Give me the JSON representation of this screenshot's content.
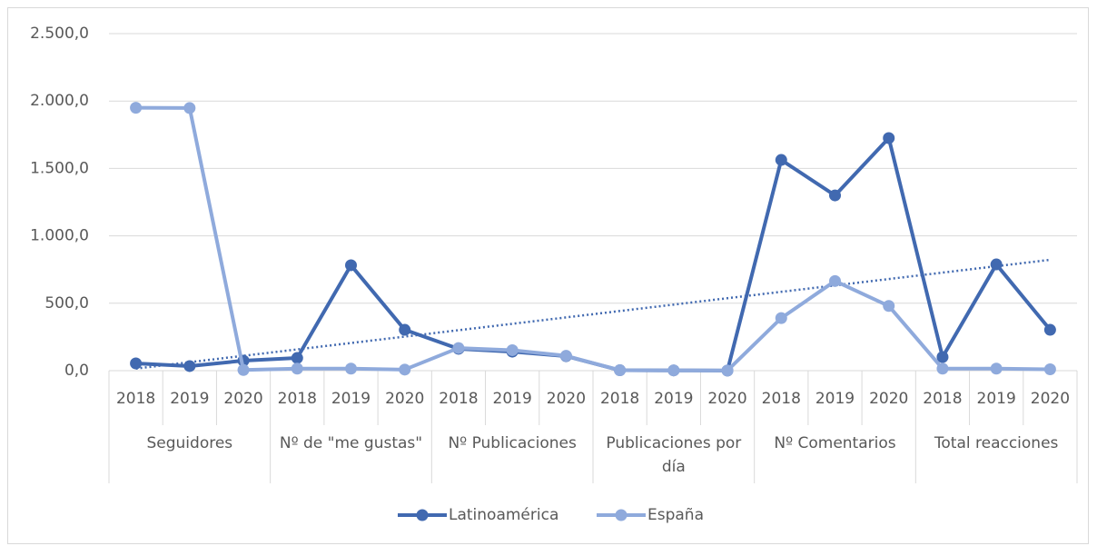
{
  "chart_data": {
    "type": "line",
    "categories": [
      "2018",
      "2019",
      "2020",
      "2018",
      "2019",
      "2020",
      "2018",
      "2019",
      "2020",
      "2018",
      "2019",
      "2020",
      "2018",
      "2019",
      "2020",
      "2018",
      "2019",
      "2020"
    ],
    "groups": [
      "Seguidores",
      "Nº de \"me gustas\"",
      "Nº Publicaciones",
      "Publicaciones por día",
      "Nº Comentarios",
      "Total reacciones"
    ],
    "series": [
      {
        "name": "Latinoamérica",
        "color": "#4169b0",
        "trendline": true,
        "values": [
          54,
          34,
          74,
          94,
          782,
          303,
          162,
          141,
          108,
          3,
          2,
          1,
          1563,
          1300,
          1725,
          101,
          788,
          303
        ]
      },
      {
        "name": "España",
        "color": "#8faadc",
        "values": [
          1950,
          1948,
          5,
          15,
          15,
          8,
          168,
          152,
          110,
          3,
          2,
          1,
          390,
          665,
          480,
          15,
          15,
          10
        ]
      }
    ],
    "ylim": [
      0,
      2500
    ],
    "yticks": [
      {
        "value": 0,
        "label": "0,0"
      },
      {
        "value": 500,
        "label": "500,0"
      },
      {
        "value": 1000,
        "label": "1.000,0"
      },
      {
        "value": 1500,
        "label": "1.500,0"
      },
      {
        "value": 2000,
        "label": "2.000,0"
      },
      {
        "value": 2500,
        "label": "2.500,0"
      }
    ],
    "grid": true,
    "legend": "bottom"
  }
}
